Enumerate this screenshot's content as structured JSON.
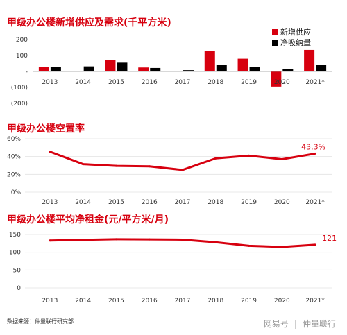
{
  "watermark": {
    "brand": "网易号",
    "separator": "|",
    "author": "仲量联行"
  },
  "source": "数据来源：仲量联行研究部",
  "colors": {
    "red": "#d7000f",
    "black": "#000000",
    "grey_text": "#333333"
  },
  "chart_data": [
    {
      "type": "bar",
      "title": "甲级办公楼新增供应及需求(千平方米)",
      "categories": [
        "2013",
        "2014",
        "2015",
        "2016",
        "2017",
        "2018",
        "2019",
        "2020",
        "2021*"
      ],
      "yticks": [
        "200",
        "100",
        "-",
        "(100)",
        "(200)"
      ],
      "ylim": [
        -200,
        200
      ],
      "legend": "top-right",
      "series": [
        {
          "name": "新增供应",
          "color": "#d7000f",
          "values": [
            28,
            0,
            72,
            25,
            0,
            130,
            80,
            -95,
            135
          ]
        },
        {
          "name": "净吸纳量",
          "color": "#000000",
          "values": [
            27,
            32,
            55,
            22,
            8,
            40,
            27,
            15,
            42
          ]
        }
      ]
    },
    {
      "type": "line",
      "title": "甲级办公楼空置率",
      "categories": [
        "2013",
        "2014",
        "2015",
        "2016",
        "2017",
        "2018",
        "2019",
        "2020",
        "2021*"
      ],
      "yticks": [
        "60%",
        "40%",
        "20%",
        "0%"
      ],
      "ylim": [
        0,
        60
      ],
      "series": [
        {
          "color": "#d7000f",
          "values": [
            45.5,
            31.5,
            29.5,
            29,
            25,
            38,
            41,
            37,
            43.3
          ]
        }
      ],
      "end_label": "43.3%"
    },
    {
      "type": "line",
      "title": "甲级办公楼平均净租金(元/平方米/月)",
      "categories": [
        "2013",
        "2014",
        "2015",
        "2016",
        "2017",
        "2018",
        "2019",
        "2020",
        "2021*"
      ],
      "yticks": [
        "150",
        "100",
        "50",
        "0"
      ],
      "ylim": [
        0,
        150
      ],
      "series": [
        {
          "color": "#d7000f",
          "values": [
            133,
            135,
            136.5,
            136,
            135.5,
            128,
            118,
            115,
            121
          ]
        }
      ],
      "end_label": "121"
    }
  ]
}
